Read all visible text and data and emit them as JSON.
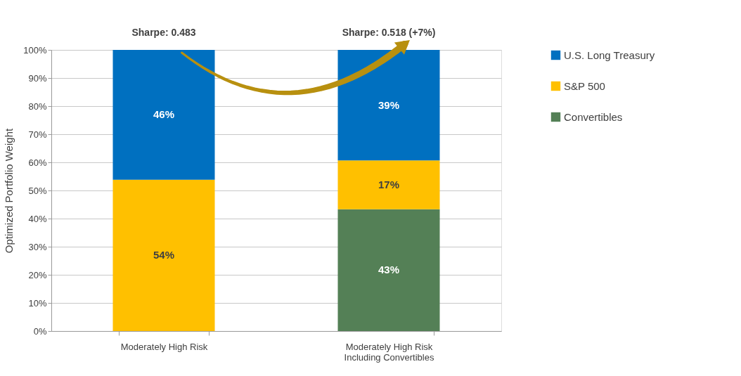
{
  "chart_data": {
    "type": "bar",
    "stacked": true,
    "categories": [
      "Moderately High Risk",
      "Moderately High Risk\nIncluding Convertibles"
    ],
    "series": [
      {
        "name": "Convertibles",
        "color": "#548056",
        "values": [
          null,
          43.3
        ],
        "value_labels": [
          null,
          "43%"
        ]
      },
      {
        "name": "S&P 500",
        "color": "#ffc000",
        "values": [
          53.8,
          17.4
        ],
        "value_labels": [
          "54%",
          "17%"
        ]
      },
      {
        "name": "U.S. Long Treasury",
        "color": "#0070c0",
        "values": [
          46.2,
          39.3
        ],
        "value_labels": [
          "46%",
          "39%"
        ]
      }
    ],
    "ylabel": "Optimized Portfolio Weight",
    "ylim": [
      0,
      100
    ],
    "yticks": [
      {
        "value": 0,
        "label": "0%"
      },
      {
        "value": 10,
        "label": "10%"
      },
      {
        "value": 20,
        "label": "20%"
      },
      {
        "value": 30,
        "label": "30%"
      },
      {
        "value": 40,
        "label": "40%"
      },
      {
        "value": 50,
        "label": "50%"
      },
      {
        "value": 60,
        "label": "60%"
      },
      {
        "value": 70,
        "label": "70%"
      },
      {
        "value": 80,
        "label": "80%"
      },
      {
        "value": 90,
        "label": "90%"
      },
      {
        "value": 100,
        "label": "100%"
      }
    ],
    "grid": "y",
    "legend": "right",
    "annotations": [
      "Sharpe: 0.483",
      "Sharpe: 0.518 (+7%)"
    ]
  }
}
